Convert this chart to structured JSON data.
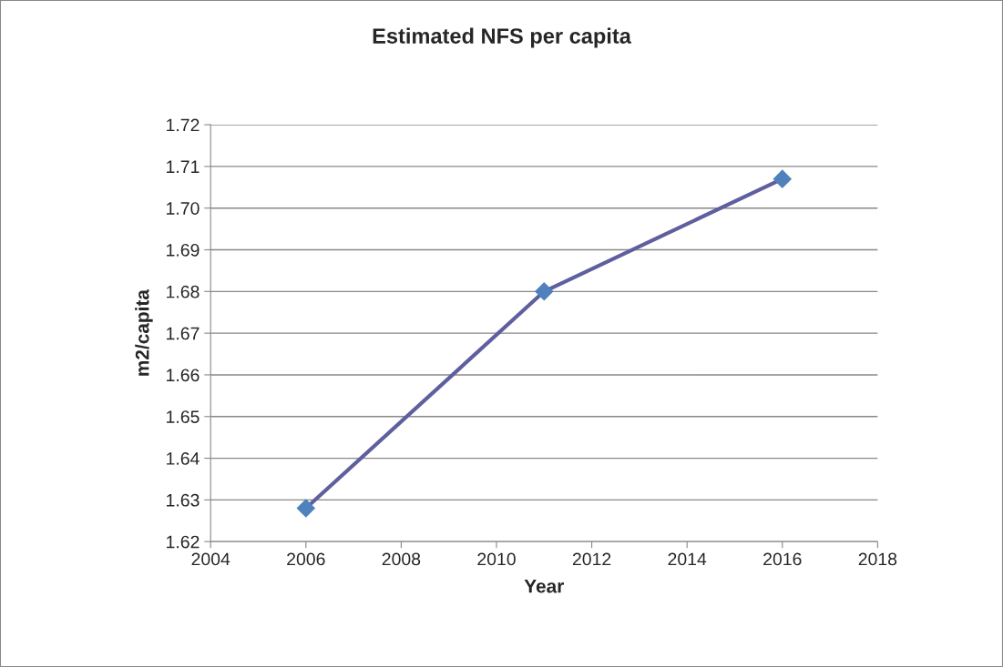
{
  "chart_data": {
    "type": "line",
    "title": "Estimated NFS per capita",
    "xlabel": "Year",
    "ylabel": "m2/capita",
    "x": [
      2006,
      2011,
      2016
    ],
    "series": [
      {
        "color": "#5f5f9f",
        "colors": [
          "#4f81bd",
          "#4f81bd",
          "#4f81bd"
        ],
        "values": [
          1.628,
          1.68,
          1.707
        ]
      }
    ],
    "xlim": [
      2004,
      2018
    ],
    "xticks": [
      2004,
      2006,
      2008,
      2010,
      2012,
      2014,
      2016,
      2018
    ],
    "ylim": [
      1.62,
      1.72
    ],
    "yticks": [
      1.62,
      1.63,
      1.64,
      1.65,
      1.66,
      1.67,
      1.68,
      1.69,
      {
        "value": 1.7,
        "label": "1.70"
      },
      1.71,
      1.72
    ],
    "grid": "y",
    "marker": "diamond",
    "line_style": "solid",
    "legend": false
  }
}
